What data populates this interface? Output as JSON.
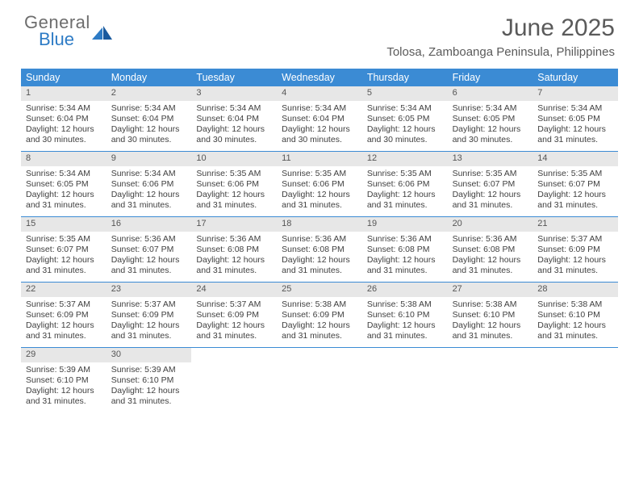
{
  "brand": {
    "line1": "General",
    "line2": "Blue"
  },
  "title": "June 2025",
  "location": "Tolosa, Zamboanga Peninsula, Philippines",
  "colors": {
    "header_bg": "#3b8bd4",
    "header_text": "#ffffff",
    "daynum_bg": "#e7e7e7",
    "week_border": "#3b8bd4",
    "text": "#404040",
    "title_color": "#5a5a5a",
    "logo_gray": "#6d6d6d",
    "logo_blue": "#2d7bc5"
  },
  "day_names": [
    "Sunday",
    "Monday",
    "Tuesday",
    "Wednesday",
    "Thursday",
    "Friday",
    "Saturday"
  ],
  "weeks": [
    [
      {
        "n": 1,
        "sr": "5:34 AM",
        "ss": "6:04 PM",
        "dl": "12 hours and 30 minutes."
      },
      {
        "n": 2,
        "sr": "5:34 AM",
        "ss": "6:04 PM",
        "dl": "12 hours and 30 minutes."
      },
      {
        "n": 3,
        "sr": "5:34 AM",
        "ss": "6:04 PM",
        "dl": "12 hours and 30 minutes."
      },
      {
        "n": 4,
        "sr": "5:34 AM",
        "ss": "6:04 PM",
        "dl": "12 hours and 30 minutes."
      },
      {
        "n": 5,
        "sr": "5:34 AM",
        "ss": "6:05 PM",
        "dl": "12 hours and 30 minutes."
      },
      {
        "n": 6,
        "sr": "5:34 AM",
        "ss": "6:05 PM",
        "dl": "12 hours and 30 minutes."
      },
      {
        "n": 7,
        "sr": "5:34 AM",
        "ss": "6:05 PM",
        "dl": "12 hours and 31 minutes."
      }
    ],
    [
      {
        "n": 8,
        "sr": "5:34 AM",
        "ss": "6:05 PM",
        "dl": "12 hours and 31 minutes."
      },
      {
        "n": 9,
        "sr": "5:34 AM",
        "ss": "6:06 PM",
        "dl": "12 hours and 31 minutes."
      },
      {
        "n": 10,
        "sr": "5:35 AM",
        "ss": "6:06 PM",
        "dl": "12 hours and 31 minutes."
      },
      {
        "n": 11,
        "sr": "5:35 AM",
        "ss": "6:06 PM",
        "dl": "12 hours and 31 minutes."
      },
      {
        "n": 12,
        "sr": "5:35 AM",
        "ss": "6:06 PM",
        "dl": "12 hours and 31 minutes."
      },
      {
        "n": 13,
        "sr": "5:35 AM",
        "ss": "6:07 PM",
        "dl": "12 hours and 31 minutes."
      },
      {
        "n": 14,
        "sr": "5:35 AM",
        "ss": "6:07 PM",
        "dl": "12 hours and 31 minutes."
      }
    ],
    [
      {
        "n": 15,
        "sr": "5:35 AM",
        "ss": "6:07 PM",
        "dl": "12 hours and 31 minutes."
      },
      {
        "n": 16,
        "sr": "5:36 AM",
        "ss": "6:07 PM",
        "dl": "12 hours and 31 minutes."
      },
      {
        "n": 17,
        "sr": "5:36 AM",
        "ss": "6:08 PM",
        "dl": "12 hours and 31 minutes."
      },
      {
        "n": 18,
        "sr": "5:36 AM",
        "ss": "6:08 PM",
        "dl": "12 hours and 31 minutes."
      },
      {
        "n": 19,
        "sr": "5:36 AM",
        "ss": "6:08 PM",
        "dl": "12 hours and 31 minutes."
      },
      {
        "n": 20,
        "sr": "5:36 AM",
        "ss": "6:08 PM",
        "dl": "12 hours and 31 minutes."
      },
      {
        "n": 21,
        "sr": "5:37 AM",
        "ss": "6:09 PM",
        "dl": "12 hours and 31 minutes."
      }
    ],
    [
      {
        "n": 22,
        "sr": "5:37 AM",
        "ss": "6:09 PM",
        "dl": "12 hours and 31 minutes."
      },
      {
        "n": 23,
        "sr": "5:37 AM",
        "ss": "6:09 PM",
        "dl": "12 hours and 31 minutes."
      },
      {
        "n": 24,
        "sr": "5:37 AM",
        "ss": "6:09 PM",
        "dl": "12 hours and 31 minutes."
      },
      {
        "n": 25,
        "sr": "5:38 AM",
        "ss": "6:09 PM",
        "dl": "12 hours and 31 minutes."
      },
      {
        "n": 26,
        "sr": "5:38 AM",
        "ss": "6:10 PM",
        "dl": "12 hours and 31 minutes."
      },
      {
        "n": 27,
        "sr": "5:38 AM",
        "ss": "6:10 PM",
        "dl": "12 hours and 31 minutes."
      },
      {
        "n": 28,
        "sr": "5:38 AM",
        "ss": "6:10 PM",
        "dl": "12 hours and 31 minutes."
      }
    ],
    [
      {
        "n": 29,
        "sr": "5:39 AM",
        "ss": "6:10 PM",
        "dl": "12 hours and 31 minutes."
      },
      {
        "n": 30,
        "sr": "5:39 AM",
        "ss": "6:10 PM",
        "dl": "12 hours and 31 minutes."
      },
      null,
      null,
      null,
      null,
      null
    ]
  ],
  "labels": {
    "sunrise": "Sunrise: ",
    "sunset": "Sunset: ",
    "daylight": "Daylight: "
  }
}
